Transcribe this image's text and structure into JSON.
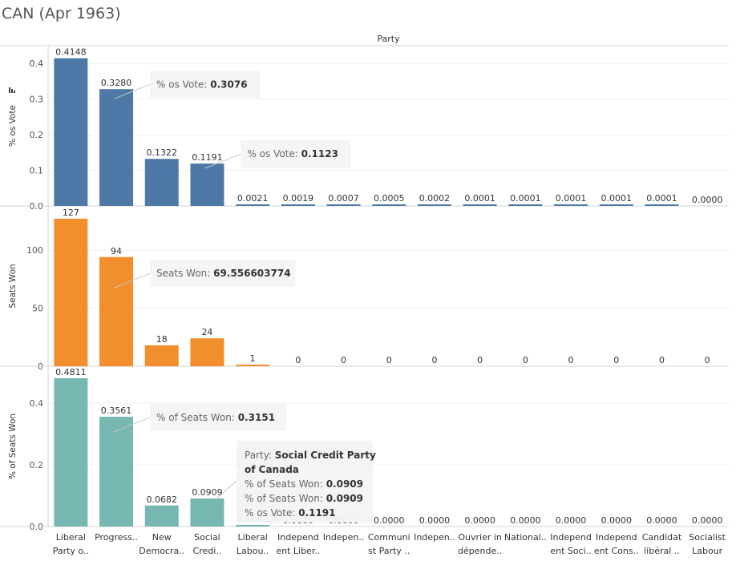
{
  "title": "CAN (Apr 1963)",
  "chart_data": {
    "type": "bar",
    "column_header": "Party",
    "categories": [
      [
        "Liberal",
        "Party o.."
      ],
      [
        "Progress.."
      ],
      [
        "New",
        "Democra.."
      ],
      [
        "Social",
        "Credi.."
      ],
      [
        "Liberal",
        "Labou.."
      ],
      [
        "Independ",
        "ent Liber.."
      ],
      [
        "Indepen.."
      ],
      [
        "Communi",
        "st Party .."
      ],
      [
        "Indepen.."
      ],
      [
        "Ouvrier in",
        "dépende.."
      ],
      [
        "National.."
      ],
      [
        "Independ",
        "ent Soci.."
      ],
      [
        "Independ",
        "ent Cons.."
      ],
      [
        "Candidat",
        "libéral .."
      ],
      [
        "Socialist",
        "Labour"
      ]
    ],
    "panels": [
      {
        "ylabel": "% os Vote",
        "color": "#4e79a7",
        "ylim": [
          0,
          0.45
        ],
        "ticks": [
          "0.0",
          "0.1",
          "0.2",
          "0.3",
          "0.4"
        ],
        "values": [
          0.4148,
          0.328,
          0.1322,
          0.1191,
          0.0021,
          0.0019,
          0.0007,
          0.0005,
          0.0002,
          0.0001,
          0.0001,
          0.0001,
          0.0001,
          0.0001,
          0.0
        ],
        "labels": [
          "0.4148",
          "0.3280",
          "0.1322",
          "0.1191",
          "0.0021",
          "0.0019",
          "0.0007",
          "0.0005",
          "0.0002",
          "0.0001",
          "0.0001",
          "0.0001",
          "0.0001",
          "0.0001",
          "0.0000"
        ],
        "has_sort_icon": true,
        "annotations": [
          {
            "label": "% os Vote: ",
            "value": "0.3076",
            "category_index": 1,
            "data_y": 0.3076
          },
          {
            "label": "% os Vote: ",
            "value": "0.1123",
            "category_index": 3,
            "data_y": 0.1123
          }
        ]
      },
      {
        "ylabel": "Seats Won",
        "color": "#f28e2b",
        "ylim": [
          0,
          138
        ],
        "ticks": [
          "0",
          "50",
          "100"
        ],
        "values": [
          127,
          94,
          18,
          24,
          1,
          0,
          0,
          0,
          0,
          0,
          0,
          0,
          0,
          0,
          0
        ],
        "labels": [
          "127",
          "94",
          "18",
          "24",
          "1",
          "0",
          "0",
          "0",
          "0",
          "0",
          "0",
          "0",
          "0",
          "0",
          "0"
        ],
        "annotations": [
          {
            "label": "Seats Won: ",
            "value": "69.556603774",
            "category_index": 1,
            "data_y": 69.556603774
          }
        ]
      },
      {
        "ylabel": "% of Seats Won",
        "color": "#76b7b2",
        "ylim": [
          0,
          0.52
        ],
        "ticks": [
          "0.0",
          "0.2",
          "0.4"
        ],
        "values": [
          0.4811,
          0.3561,
          0.0682,
          0.0909,
          0.0038,
          0.0,
          0.0,
          0.0,
          0.0,
          0.0,
          0.0,
          0.0,
          0.0,
          0.0,
          0.0
        ],
        "labels": [
          "0.4811",
          "0.3561",
          "0.0682",
          "0.0909",
          "0.0038",
          "0.0000",
          "0.0000",
          "0.0000",
          "0.0000",
          "0.0000",
          "0.0000",
          "0.0000",
          "0.0000",
          "0.0000",
          "0.0000"
        ],
        "annotations": [
          {
            "label": "% of Seats Won: ",
            "value": "0.3151",
            "category_index": 1,
            "data_y": 0.3151
          }
        ]
      }
    ],
    "tooltip": {
      "category_index": 3,
      "lines": [
        {
          "label": "Party: ",
          "value": "Social Credit Party"
        },
        {
          "label": "",
          "value": "of Canada"
        },
        {
          "label": "% of Seats Won: ",
          "value": "0.0909"
        },
        {
          "label": "% of Seats Won: ",
          "value": "0.0909"
        },
        {
          "label": "% os Vote: ",
          "value": "0.1191"
        }
      ]
    }
  }
}
